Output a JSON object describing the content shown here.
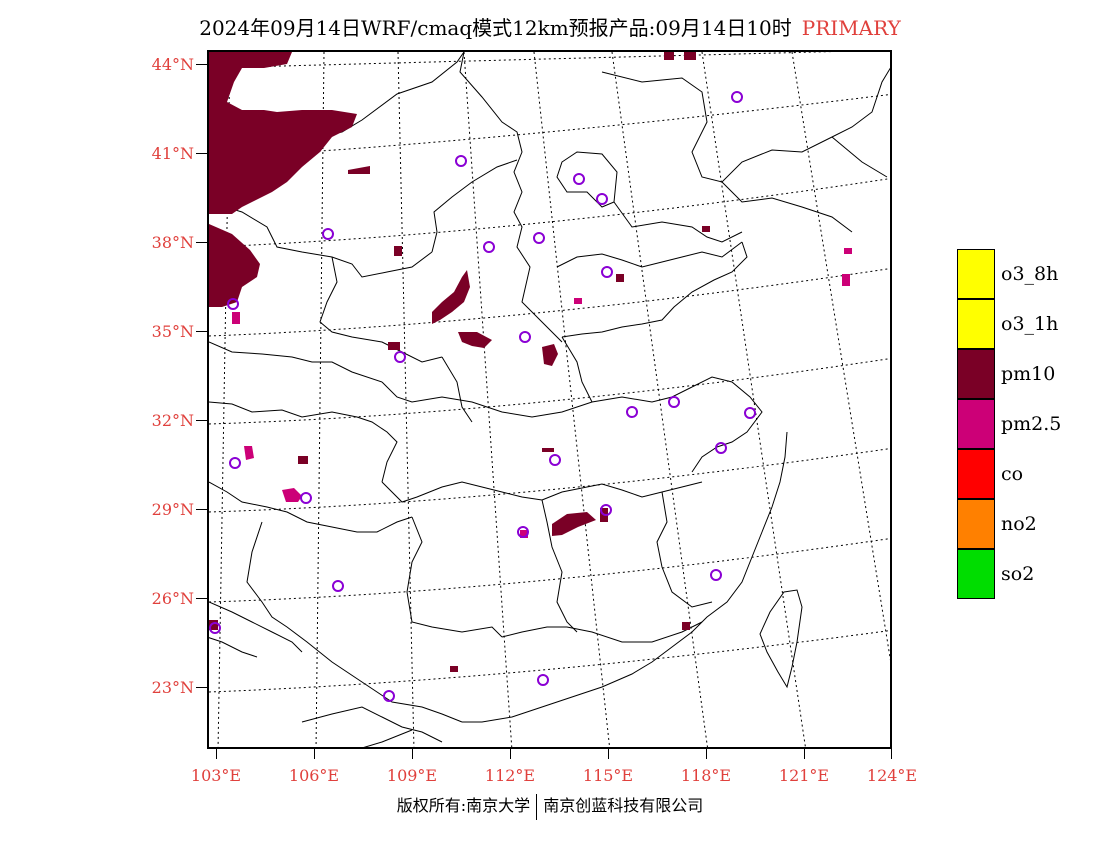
{
  "title": {
    "main": "2024年09月14日WRF/cmaq模式12km预报产品:09月14日10时",
    "tag": "PRIMARY"
  },
  "axes": {
    "lat_labels": [
      "44°N",
      "41°N",
      "38°N",
      "35°N",
      "32°N",
      "29°N",
      "26°N",
      "23°N"
    ],
    "lon_labels": [
      "103°E",
      "106°E",
      "109°E",
      "112°E",
      "115°E",
      "118°E",
      "121°E",
      "124°E"
    ]
  },
  "legend": {
    "items": [
      {
        "label": "o3_8h",
        "color": "#ffff00"
      },
      {
        "label": "o3_1h",
        "color": "#ffff00"
      },
      {
        "label": "pm10",
        "color": "#7a0026"
      },
      {
        "label": "pm2.5",
        "color": "#cc0077"
      },
      {
        "label": "co",
        "color": "#ff0000"
      },
      {
        "label": "no2",
        "color": "#ff8000"
      },
      {
        "label": "so2",
        "color": "#00dd00"
      }
    ]
  },
  "footer": {
    "left": "版权所有:南京大学",
    "right": "南京创蓝科技有限公司"
  },
  "colors": {
    "label_red": "#e0403c",
    "pm10": "#7a0026",
    "pm25": "#cc0077",
    "station": "#8a00d4"
  }
}
